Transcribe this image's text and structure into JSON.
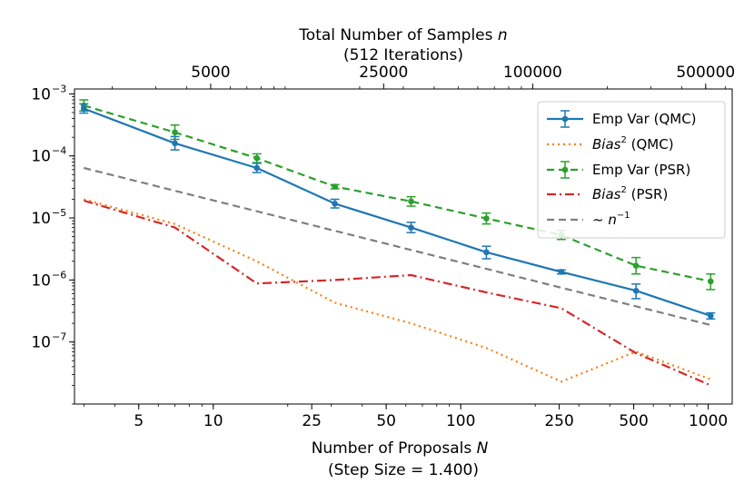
{
  "chart_data": {
    "type": "line",
    "x_scale": "log",
    "y_scale": "log",
    "xlim": [
      2.75,
      1250
    ],
    "ylim": [
      1e-08,
      0.0012
    ],
    "xlabel_line1": "Number of Proposals",
    "xlabel_var": "N",
    "xlabel_line2": "(Step Size = 1.400)",
    "top_label_line1": "Total Number of Samples",
    "top_label_var": "n",
    "top_label_line2": "(512 Iterations)",
    "x_ticks": [
      5,
      10,
      25,
      50,
      100,
      250,
      500,
      1000
    ],
    "x_tick_labels": [
      "5",
      "10",
      "25",
      "50",
      "100",
      "250",
      "500",
      "1000"
    ],
    "top_ticks": [
      5000,
      25000,
      100000,
      500000
    ],
    "top_tick_labels": [
      "5000",
      "25000",
      "100000",
      "500000"
    ],
    "iterations": 512,
    "y_ticks": [
      0.001,
      0.0001,
      1e-05,
      1e-06,
      1e-07
    ],
    "y_tick_mantissa": "10",
    "y_tick_exponents": [
      "−3",
      "−4",
      "−5",
      "−6",
      "−7"
    ],
    "x": [
      3,
      7,
      15,
      31,
      63,
      127,
      255,
      511,
      1023
    ],
    "grid": false,
    "legend_position": "top-right",
    "series": [
      {
        "name": "Emp Var (QMC)",
        "color": "#1f77b4",
        "style": "solid-marker-errorbar",
        "values": [
          0.00058,
          0.00016,
          6.4e-05,
          1.7e-05,
          7e-06,
          2.8e-06,
          1.35e-06,
          6.7e-07,
          2.65e-07
        ],
        "err_low": [
          0.00049,
          0.000125,
          5.4e-05,
          1.45e-05,
          5.8e-06,
          2.2e-06,
          1.25e-06,
          5e-07,
          2.35e-07
        ],
        "err_high": [
          0.00069,
          0.000205,
          7.6e-05,
          2e-05,
          8.5e-06,
          3.5e-06,
          1.45e-06,
          8.6e-07,
          2.95e-07
        ]
      },
      {
        "name_prefix": "Bias",
        "name_sup": "2",
        "name_suffix": "(QMC)",
        "color": "#ff7f0e",
        "style": "dotted",
        "values": [
          2e-05,
          8e-06,
          2e-06,
          4.3e-07,
          2e-07,
          8e-08,
          2.3e-08,
          7e-08,
          2.5e-08
        ]
      },
      {
        "name": "Emp Var (PSR)",
        "color": "#2ca02c",
        "style": "dashed-marker-errorbar",
        "values": [
          0.00065,
          0.00024,
          9.2e-05,
          3.2e-05,
          1.85e-05,
          9.8e-06,
          5.3e-06,
          1.7e-06,
          9.5e-07
        ],
        "err_low": [
          0.00053,
          0.000185,
          7.8e-05,
          2.95e-05,
          1.55e-05,
          8e-06,
          4.5e-06,
          1.25e-06,
          7e-07
        ],
        "err_high": [
          0.0008,
          0.000315,
          0.000108,
          3.45e-05,
          2.2e-05,
          1.2e-05,
          6.3e-06,
          2.3e-06,
          1.25e-06
        ]
      },
      {
        "name_prefix": "Bias",
        "name_sup": "2",
        "name_suffix": "(PSR)",
        "color": "#d62728",
        "style": "dashdot",
        "values": [
          1.9e-05,
          7e-06,
          8.8e-07,
          1e-06,
          1.2e-06,
          6.3e-07,
          3.5e-07,
          6.6e-08,
          2e-08
        ]
      },
      {
        "name_prefix": "~",
        "name_var": "n",
        "name_sup": "−1",
        "color": "#7f7f7f",
        "style": "dashed",
        "values": [
          6.4e-05,
          2.74e-05,
          1.28e-05,
          6.2e-06,
          3.05e-06,
          1.51e-06,
          7.5e-07,
          3.76e-07,
          1.88e-07
        ]
      }
    ]
  }
}
